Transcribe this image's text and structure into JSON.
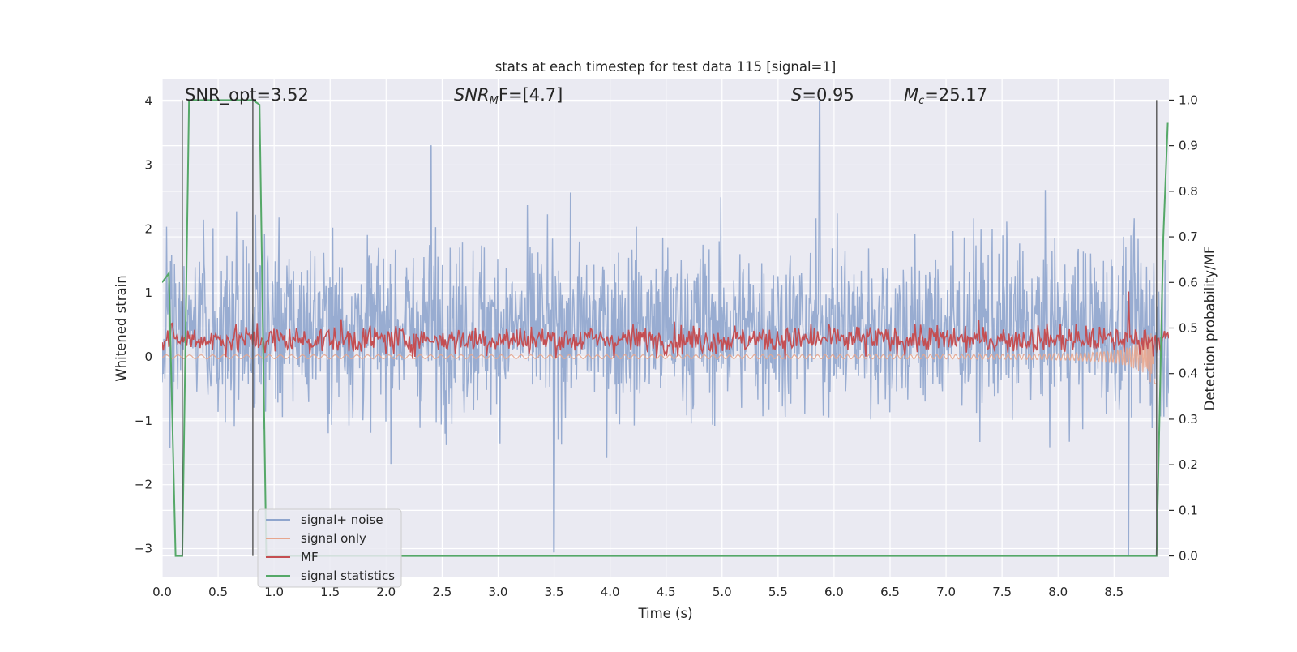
{
  "chart_data": {
    "type": "line",
    "title": "stats at each timestep for test data 115 [signal=1]",
    "xlabel": "Time (s)",
    "ylabel_left": "Whitened strain",
    "ylabel_right": "Detection probability/MF",
    "xlim": [
      0.0,
      8.99
    ],
    "ylim_left": [
      -3.45,
      4.35
    ],
    "ylim_right": [
      -0.047,
      1.047
    ],
    "x_ticks": [
      "0.0",
      "0.5",
      "1.0",
      "1.5",
      "2.0",
      "2.5",
      "3.0",
      "3.5",
      "4.0",
      "4.5",
      "5.0",
      "5.5",
      "6.0",
      "6.5",
      "7.0",
      "7.5",
      "8.0",
      "8.5"
    ],
    "y_ticks_left": [
      "−3",
      "−2",
      "−1",
      "0",
      "1",
      "2",
      "3",
      "4"
    ],
    "y_ticks_right": [
      "0.0",
      "0.1",
      "0.2",
      "0.3",
      "0.4",
      "0.5",
      "0.6",
      "0.7",
      "0.8",
      "0.9",
      "1.0"
    ],
    "grid": true,
    "legend_placement": "lower-left",
    "annotations": [
      {
        "text": "SNR_opt=3.52",
        "kind": "plain"
      },
      {
        "main": "SNR",
        "sub": "M",
        "rest": "F=[4.7]",
        "kind": "math"
      },
      {
        "main": "S",
        "sub": "",
        "rest": "=0.95",
        "kind": "math"
      },
      {
        "main": "M",
        "sub": "c",
        "rest": "=25.17",
        "kind": "math"
      }
    ],
    "vertical_markers": [
      0.18,
      0.81,
      8.88
    ],
    "series": [
      {
        "name": "signal+ noise",
        "axis": "left",
        "color": "#8fa5cd",
        "summary": {
          "typical_range": [
            -1.0,
            1.9
          ],
          "extreme_min": -3.1,
          "extreme_max": 4.0,
          "notable_peaks": [
            {
              "x": 2.4,
              "y": 3.3
            },
            {
              "x": 5.87,
              "y": 4.0
            },
            {
              "x": 3.5,
              "y": -3.05
            },
            {
              "x": 8.63,
              "y": -3.1
            }
          ]
        }
      },
      {
        "name": "signal only",
        "axis": "left",
        "color": "#e7a68e",
        "summary": {
          "amplitude_start": 0.03,
          "amplitude_end": 0.6,
          "end_time": 8.88
        }
      },
      {
        "name": "MF",
        "axis": "right",
        "color": "#c44e52",
        "summary": {
          "typical_range": [
            0.41,
            0.56
          ],
          "peak": {
            "x": 8.63,
            "y": 0.58
          }
        }
      },
      {
        "name": "signal statistics",
        "axis": "right",
        "color": "#55a868",
        "points": [
          [
            0.0,
            0.6
          ],
          [
            0.06,
            0.62
          ],
          [
            0.12,
            0.0
          ],
          [
            0.18,
            0.0
          ],
          [
            0.24,
            1.0
          ],
          [
            0.81,
            1.0
          ],
          [
            0.87,
            0.99
          ],
          [
            0.93,
            0.0
          ],
          [
            8.88,
            0.0
          ],
          [
            8.94,
            0.7
          ],
          [
            8.98,
            0.95
          ]
        ]
      }
    ],
    "colors": {
      "plot_background": "#eaeaf2",
      "grid": "#ffffff",
      "marker_line": "#555555"
    }
  }
}
